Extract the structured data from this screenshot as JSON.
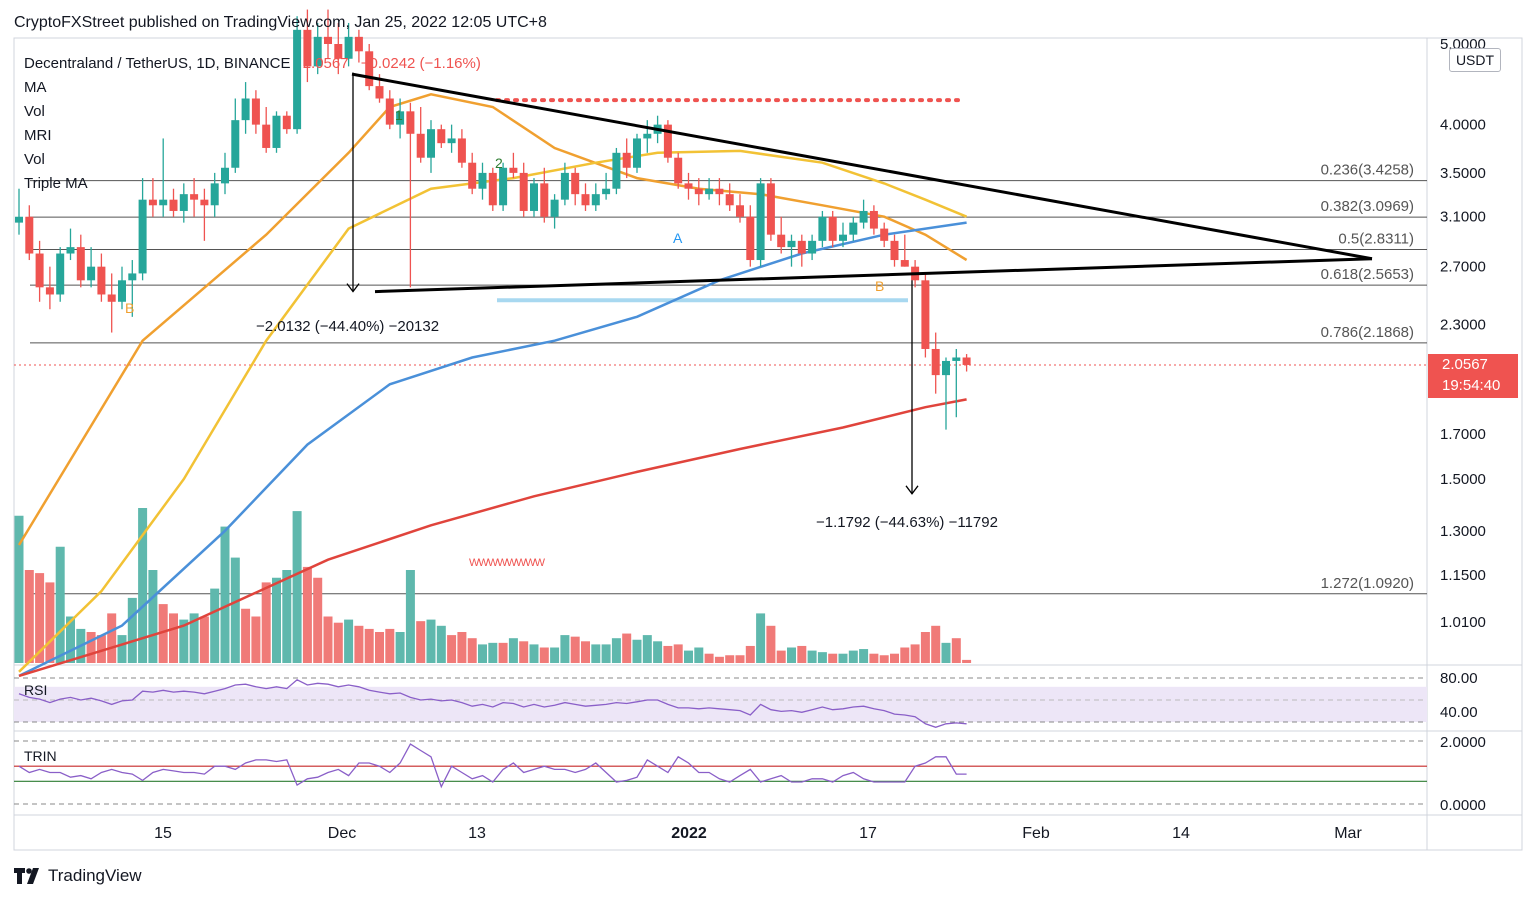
{
  "header": {
    "published": "CryptoFXStreet published on TradingView.com, Jan 25, 2022 12:05 UTC+8"
  },
  "legend": {
    "title": "Decentraland / TetherUS, 1D, BINANCE",
    "last": "2.0567",
    "change": "−0.0242 (−1.16%)",
    "indicators": [
      "MA",
      "Vol",
      "MRI",
      "Vol",
      "Triple MA"
    ]
  },
  "price_axis": {
    "unit": "USDT",
    "ticks": [
      "5.0000",
      "4.0000",
      "3.5000",
      "3.1000",
      "2.7000",
      "2.3000",
      "1.7000",
      "1.5000",
      "1.3000",
      "1.1500",
      "1.0100"
    ],
    "current_price": "2.0567",
    "countdown": "19:54:40"
  },
  "time_axis": {
    "labels": [
      "15",
      "Dec",
      "13",
      "2022",
      "17",
      "Feb",
      "14",
      "Mar"
    ]
  },
  "colors": {
    "up": "#26a69a",
    "down": "#ef5350",
    "volume_up": "#5fb8ad",
    "volume_down": "#f07a78",
    "ma_orange": "#f0a030",
    "ma_yellow": "#f2c235",
    "ma_blue": "#4a90d9",
    "ma_red": "#e0443c",
    "rsi_line": "#8a5fc8",
    "rsi_band": "#ede6f7"
  },
  "chart_data": {
    "type": "candlestick",
    "symbol": "Decentraland / TetherUS",
    "interval": "1D",
    "exchange": "BINANCE",
    "scale": "log",
    "ylim": [
      0.85,
      5.2
    ],
    "fibonacci": [
      {
        "level": "0.236",
        "price": 3.4258,
        "label": "0.236(3.4258)"
      },
      {
        "level": "0.382",
        "price": 3.0969,
        "label": "0.382(3.0969)"
      },
      {
        "level": "0.5",
        "price": 2.8311,
        "label": "0.5(2.8311)"
      },
      {
        "level": "0.618",
        "price": 2.5653,
        "label": "0.618(2.5653)"
      },
      {
        "level": "0.786",
        "price": 2.1868,
        "label": "0.786(2.1868)"
      },
      {
        "level": "1.272",
        "price": 1.092,
        "label": "1.272(1.0920)"
      }
    ],
    "measurements": [
      {
        "label": "−2.0132 (−44.40%) −20132"
      },
      {
        "label": "−1.1792 (−44.63%) −11792"
      }
    ],
    "pattern_labels": [
      "1",
      "2",
      "A",
      "B",
      "B"
    ],
    "annotation_zigzag": "WWWWWWWW",
    "candles": [
      [
        3.05,
        3.35,
        2.95,
        3.1
      ],
      [
        3.1,
        3.2,
        2.75,
        2.8
      ],
      [
        2.8,
        2.9,
        2.45,
        2.55
      ],
      [
        2.55,
        2.7,
        2.4,
        2.5
      ],
      [
        2.5,
        2.85,
        2.45,
        2.8
      ],
      [
        2.8,
        3.0,
        2.75,
        2.85
      ],
      [
        2.85,
        2.95,
        2.55,
        2.6
      ],
      [
        2.6,
        2.85,
        2.55,
        2.7
      ],
      [
        2.7,
        2.8,
        2.45,
        2.5
      ],
      [
        2.5,
        2.65,
        2.25,
        2.45
      ],
      [
        2.45,
        2.7,
        2.4,
        2.6
      ],
      [
        2.6,
        2.75,
        2.35,
        2.65
      ],
      [
        2.65,
        3.45,
        2.6,
        3.25
      ],
      [
        3.25,
        3.45,
        3.1,
        3.2
      ],
      [
        3.2,
        3.85,
        3.1,
        3.25
      ],
      [
        3.25,
        3.35,
        3.1,
        3.15
      ],
      [
        3.15,
        3.4,
        3.05,
        3.3
      ],
      [
        3.3,
        3.45,
        3.1,
        3.25
      ],
      [
        3.25,
        3.35,
        2.9,
        3.2
      ],
      [
        3.2,
        3.5,
        3.1,
        3.4
      ],
      [
        3.4,
        3.7,
        3.3,
        3.55
      ],
      [
        3.55,
        4.3,
        3.5,
        4.05
      ],
      [
        4.05,
        4.5,
        3.9,
        4.3
      ],
      [
        4.3,
        4.4,
        3.9,
        4.0
      ],
      [
        4.0,
        4.2,
        3.7,
        3.75
      ],
      [
        3.75,
        4.15,
        3.7,
        4.1
      ],
      [
        4.1,
        4.15,
        3.9,
        3.95
      ],
      [
        3.95,
        5.4,
        3.9,
        5.2
      ],
      [
        5.2,
        5.5,
        4.5,
        4.7
      ],
      [
        4.7,
        5.3,
        4.6,
        5.1
      ],
      [
        5.1,
        5.5,
        4.8,
        5.0
      ],
      [
        5.0,
        5.3,
        4.6,
        4.8
      ],
      [
        4.8,
        5.3,
        4.7,
        5.1
      ],
      [
        5.1,
        5.2,
        4.75,
        4.9
      ],
      [
        4.9,
        5.0,
        4.4,
        4.45
      ],
      [
        4.45,
        4.6,
        4.25,
        4.3
      ],
      [
        4.3,
        4.4,
        3.95,
        4.0
      ],
      [
        4.0,
        4.3,
        3.85,
        4.15
      ],
      [
        4.15,
        4.25,
        2.55,
        3.9
      ],
      [
        3.9,
        4.2,
        3.6,
        3.65
      ],
      [
        3.65,
        4.05,
        3.5,
        3.95
      ],
      [
        3.95,
        4.0,
        3.75,
        3.8
      ],
      [
        3.8,
        4.0,
        3.7,
        3.85
      ],
      [
        3.85,
        3.95,
        3.55,
        3.6
      ],
      [
        3.6,
        3.7,
        3.3,
        3.35
      ],
      [
        3.35,
        3.6,
        3.25,
        3.5
      ],
      [
        3.5,
        3.55,
        3.15,
        3.2
      ],
      [
        3.2,
        3.6,
        3.15,
        3.55
      ],
      [
        3.55,
        3.7,
        3.45,
        3.5
      ],
      [
        3.5,
        3.6,
        3.1,
        3.15
      ],
      [
        3.15,
        3.45,
        3.1,
        3.4
      ],
      [
        3.4,
        3.55,
        3.05,
        3.1
      ],
      [
        3.1,
        3.3,
        3.0,
        3.25
      ],
      [
        3.25,
        3.6,
        3.2,
        3.5
      ],
      [
        3.5,
        3.55,
        3.2,
        3.3
      ],
      [
        3.3,
        3.4,
        3.15,
        3.2
      ],
      [
        3.2,
        3.4,
        3.15,
        3.3
      ],
      [
        3.3,
        3.5,
        3.25,
        3.35
      ],
      [
        3.35,
        3.75,
        3.3,
        3.7
      ],
      [
        3.7,
        3.85,
        3.45,
        3.55
      ],
      [
        3.55,
        3.9,
        3.5,
        3.85
      ],
      [
        3.85,
        4.05,
        3.7,
        3.9
      ],
      [
        3.9,
        4.1,
        3.8,
        4.0
      ],
      [
        4.0,
        4.05,
        3.6,
        3.65
      ],
      [
        3.65,
        3.7,
        3.35,
        3.4
      ],
      [
        3.4,
        3.5,
        3.25,
        3.35
      ],
      [
        3.35,
        3.45,
        3.2,
        3.3
      ],
      [
        3.3,
        3.45,
        3.25,
        3.35
      ],
      [
        3.35,
        3.45,
        3.2,
        3.3
      ],
      [
        3.3,
        3.4,
        3.15,
        3.2
      ],
      [
        3.2,
        3.3,
        3.05,
        3.1
      ],
      [
        3.1,
        3.2,
        2.7,
        2.75
      ],
      [
        2.75,
        3.45,
        2.7,
        3.4
      ],
      [
        3.4,
        3.45,
        2.9,
        2.95
      ],
      [
        2.95,
        3.1,
        2.8,
        2.85
      ],
      [
        2.85,
        2.95,
        2.7,
        2.9
      ],
      [
        2.9,
        2.95,
        2.7,
        2.8
      ],
      [
        2.8,
        2.95,
        2.75,
        2.9
      ],
      [
        2.9,
        3.15,
        2.85,
        3.1
      ],
      [
        3.1,
        3.15,
        2.85,
        2.9
      ],
      [
        2.9,
        3.05,
        2.85,
        2.95
      ],
      [
        2.95,
        3.1,
        2.9,
        3.05
      ],
      [
        3.05,
        3.25,
        3.0,
        3.15
      ],
      [
        3.15,
        3.2,
        2.95,
        3.0
      ],
      [
        3.0,
        3.05,
        2.85,
        2.9
      ],
      [
        2.9,
        2.95,
        2.7,
        2.75
      ],
      [
        2.75,
        2.95,
        2.7,
        2.7
      ],
      [
        2.7,
        2.75,
        2.55,
        2.6
      ],
      [
        2.6,
        2.65,
        2.1,
        2.15
      ],
      [
        2.15,
        2.25,
        1.9,
        2.0
      ],
      [
        2.0,
        2.1,
        1.72,
        2.08
      ],
      [
        2.08,
        2.15,
        1.78,
        2.1
      ],
      [
        2.1,
        2.12,
        2.02,
        2.057
      ]
    ],
    "moving_averages": [
      {
        "color": "orange",
        "points": [
          [
            0,
            1.25
          ],
          [
            12,
            2.2
          ],
          [
            24,
            2.95
          ],
          [
            32,
            3.7
          ],
          [
            36,
            4.2
          ],
          [
            40,
            4.35
          ],
          [
            46,
            4.2
          ],
          [
            52,
            3.75
          ],
          [
            60,
            3.45
          ],
          [
            66,
            3.35
          ],
          [
            72,
            3.3
          ],
          [
            78,
            3.2
          ],
          [
            84,
            3.1
          ],
          [
            88,
            2.95
          ],
          [
            92,
            2.75
          ]
        ]
      },
      {
        "color": "yellow",
        "points": [
          [
            0,
            0.88
          ],
          [
            8,
            1.1
          ],
          [
            16,
            1.5
          ],
          [
            24,
            2.2
          ],
          [
            32,
            3.0
          ],
          [
            40,
            3.35
          ],
          [
            48,
            3.45
          ],
          [
            56,
            3.6
          ],
          [
            62,
            3.7
          ],
          [
            70,
            3.72
          ],
          [
            78,
            3.6
          ],
          [
            84,
            3.4
          ],
          [
            88,
            3.25
          ],
          [
            92,
            3.1
          ]
        ]
      },
      {
        "color": "blue",
        "points": [
          [
            0,
            0.87
          ],
          [
            10,
            1.0
          ],
          [
            20,
            1.3
          ],
          [
            28,
            1.65
          ],
          [
            36,
            1.95
          ],
          [
            44,
            2.1
          ],
          [
            52,
            2.2
          ],
          [
            60,
            2.35
          ],
          [
            68,
            2.6
          ],
          [
            76,
            2.8
          ],
          [
            84,
            2.95
          ],
          [
            92,
            3.05
          ]
        ]
      },
      {
        "color": "red",
        "points": [
          [
            0,
            0.87
          ],
          [
            16,
            1.0
          ],
          [
            30,
            1.2
          ],
          [
            40,
            1.32
          ],
          [
            50,
            1.43
          ],
          [
            60,
            1.53
          ],
          [
            70,
            1.63
          ],
          [
            80,
            1.73
          ],
          [
            88,
            1.83
          ],
          [
            92,
            1.87
          ]
        ]
      }
    ],
    "volume": [
      {
        "v": 0.95,
        "up": true
      },
      {
        "v": 0.6,
        "up": false
      },
      {
        "v": 0.58,
        "up": false
      },
      {
        "v": 0.52,
        "up": false
      },
      {
        "v": 0.75,
        "up": true
      },
      {
        "v": 0.3,
        "up": true
      },
      {
        "v": 0.22,
        "up": true
      },
      {
        "v": 0.2,
        "up": false
      },
      {
        "v": 0.18,
        "up": false
      },
      {
        "v": 0.32,
        "up": false
      },
      {
        "v": 0.18,
        "up": true
      },
      {
        "v": 0.42,
        "up": true
      },
      {
        "v": 1.0,
        "up": true
      },
      {
        "v": 0.6,
        "up": true
      },
      {
        "v": 0.38,
        "up": false
      },
      {
        "v": 0.32,
        "up": false
      },
      {
        "v": 0.28,
        "up": true
      },
      {
        "v": 0.32,
        "up": true
      },
      {
        "v": 0.3,
        "up": false
      },
      {
        "v": 0.48,
        "up": true
      },
      {
        "v": 0.88,
        "up": true
      },
      {
        "v": 0.68,
        "up": true
      },
      {
        "v": 0.35,
        "up": false
      },
      {
        "v": 0.3,
        "up": false
      },
      {
        "v": 0.52,
        "up": false
      },
      {
        "v": 0.55,
        "up": true
      },
      {
        "v": 0.6,
        "up": true
      },
      {
        "v": 0.98,
        "up": true
      },
      {
        "v": 0.62,
        "up": false
      },
      {
        "v": 0.55,
        "up": false
      },
      {
        "v": 0.3,
        "up": false
      },
      {
        "v": 0.26,
        "up": false
      },
      {
        "v": 0.28,
        "up": true
      },
      {
        "v": 0.24,
        "up": false
      },
      {
        "v": 0.22,
        "up": false
      },
      {
        "v": 0.2,
        "up": false
      },
      {
        "v": 0.22,
        "up": false
      },
      {
        "v": 0.2,
        "up": true
      },
      {
        "v": 0.6,
        "up": true
      },
      {
        "v": 0.27,
        "up": false
      },
      {
        "v": 0.28,
        "up": true
      },
      {
        "v": 0.24,
        "up": true
      },
      {
        "v": 0.18,
        "up": false
      },
      {
        "v": 0.2,
        "up": false
      },
      {
        "v": 0.16,
        "up": false
      },
      {
        "v": 0.12,
        "up": true
      },
      {
        "v": 0.13,
        "up": true
      },
      {
        "v": 0.13,
        "up": false
      },
      {
        "v": 0.16,
        "up": true
      },
      {
        "v": 0.14,
        "up": false
      },
      {
        "v": 0.12,
        "up": true
      },
      {
        "v": 0.1,
        "up": false
      },
      {
        "v": 0.1,
        "up": true
      },
      {
        "v": 0.18,
        "up": true
      },
      {
        "v": 0.17,
        "up": false
      },
      {
        "v": 0.14,
        "up": false
      },
      {
        "v": 0.12,
        "up": true
      },
      {
        "v": 0.12,
        "up": true
      },
      {
        "v": 0.16,
        "up": true
      },
      {
        "v": 0.19,
        "up": false
      },
      {
        "v": 0.15,
        "up": true
      },
      {
        "v": 0.18,
        "up": true
      },
      {
        "v": 0.14,
        "up": true
      },
      {
        "v": 0.11,
        "up": false
      },
      {
        "v": 0.12,
        "up": false
      },
      {
        "v": 0.08,
        "up": true
      },
      {
        "v": 0.1,
        "up": true
      },
      {
        "v": 0.06,
        "up": false
      },
      {
        "v": 0.04,
        "up": false
      },
      {
        "v": 0.05,
        "up": false
      },
      {
        "v": 0.05,
        "up": false
      },
      {
        "v": 0.11,
        "up": false
      },
      {
        "v": 0.32,
        "up": true
      },
      {
        "v": 0.24,
        "up": false
      },
      {
        "v": 0.08,
        "up": false
      },
      {
        "v": 0.1,
        "up": true
      },
      {
        "v": 0.11,
        "up": false
      },
      {
        "v": 0.08,
        "up": true
      },
      {
        "v": 0.07,
        "up": true
      },
      {
        "v": 0.06,
        "up": false
      },
      {
        "v": 0.06,
        "up": true
      },
      {
        "v": 0.08,
        "up": true
      },
      {
        "v": 0.09,
        "up": true
      },
      {
        "v": 0.06,
        "up": false
      },
      {
        "v": 0.05,
        "up": false
      },
      {
        "v": 0.06,
        "up": false
      },
      {
        "v": 0.1,
        "up": false
      },
      {
        "v": 0.12,
        "up": false
      },
      {
        "v": 0.2,
        "up": false
      },
      {
        "v": 0.24,
        "up": false
      },
      {
        "v": 0.13,
        "up": true
      },
      {
        "v": 0.16,
        "up": false
      },
      {
        "v": 0.02,
        "up": false
      }
    ],
    "rsi": {
      "label": "RSI",
      "ticks": [
        "80.00",
        "40.00"
      ],
      "values": [
        62,
        58,
        56,
        52,
        56,
        58,
        55,
        57,
        54,
        50,
        54,
        55,
        65,
        64,
        66,
        64,
        65,
        64,
        62,
        65,
        68,
        72,
        73,
        70,
        68,
        70,
        68,
        78,
        72,
        74,
        73,
        70,
        72,
        70,
        66,
        64,
        62,
        63,
        58,
        55,
        56,
        54,
        55,
        52,
        48,
        50,
        47,
        52,
        51,
        47,
        50,
        47,
        49,
        52,
        50,
        48,
        49,
        50,
        52,
        51,
        53,
        55,
        55,
        50,
        46,
        46,
        45,
        46,
        45,
        44,
        43,
        38,
        50,
        44,
        42,
        43,
        41,
        44,
        47,
        44,
        45,
        47,
        48,
        45,
        43,
        39,
        38,
        36,
        28,
        24,
        28,
        29,
        28
      ]
    },
    "trin": {
      "label": "TRIN",
      "ticks": [
        "2.0000",
        "0.0000"
      ],
      "values": [
        1.2,
        1.0,
        1.1,
        1.0,
        1.0,
        0.85,
        0.9,
        0.8,
        1.0,
        1.1,
        1.0,
        0.95,
        0.75,
        1.0,
        1.1,
        1.05,
        1.0,
        1.0,
        0.95,
        1.2,
        1.2,
        1.1,
        1.3,
        1.4,
        1.4,
        1.35,
        1.4,
        0.6,
        0.8,
        0.85,
        1.0,
        1.1,
        0.9,
        1.3,
        1.3,
        1.2,
        1.0,
        1.3,
        1.9,
        1.7,
        1.5,
        0.55,
        1.2,
        1.0,
        0.8,
        0.9,
        0.7,
        1.1,
        1.3,
        1.0,
        1.1,
        1.2,
        1.1,
        1.1,
        1.0,
        1.1,
        1.3,
        1.0,
        0.7,
        0.75,
        0.85,
        1.4,
        1.2,
        1.0,
        1.5,
        1.3,
        1.0,
        1.0,
        0.8,
        0.7,
        0.9,
        1.1,
        0.7,
        0.8,
        0.9,
        0.7,
        0.7,
        0.8,
        0.8,
        0.7,
        0.9,
        1.0,
        0.8,
        0.7,
        0.7,
        0.7,
        0.7,
        1.2,
        1.3,
        1.5,
        1.5,
        0.95,
        0.95
      ]
    }
  }
}
